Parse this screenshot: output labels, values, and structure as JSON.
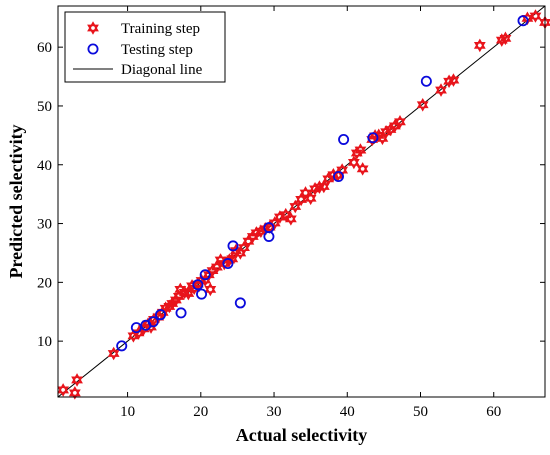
{
  "chart_data": {
    "type": "scatter",
    "title": "",
    "xlabel": "Actual selectivity",
    "ylabel": "Predicted selectivity",
    "xlim": [
      0.5,
      67
    ],
    "ylim": [
      0.5,
      67
    ],
    "xticks": [
      10,
      20,
      30,
      40,
      50,
      60
    ],
    "yticks": [
      10,
      20,
      30,
      40,
      50,
      60
    ],
    "grid": false,
    "legend_position": "top-left",
    "colors": {
      "training": "#e8141b",
      "testing": "#0a0adc",
      "diagonal": "#000000"
    },
    "series": [
      {
        "name": "Training step",
        "marker": "hexagram",
        "points": [
          [
            1.2,
            1.7
          ],
          [
            2.8,
            1.2
          ],
          [
            3.1,
            3.4
          ],
          [
            8.1,
            7.9
          ],
          [
            10.8,
            10.9
          ],
          [
            11.5,
            11.4
          ],
          [
            12.2,
            12.1
          ],
          [
            12.8,
            12.9
          ],
          [
            13.2,
            12.4
          ],
          [
            13.6,
            13.7
          ],
          [
            14.2,
            14.1
          ],
          [
            14.8,
            14.9
          ],
          [
            15.2,
            15.6
          ],
          [
            15.7,
            15.9
          ],
          [
            16.1,
            16.4
          ],
          [
            16.6,
            17.0
          ],
          [
            17.0,
            17.6
          ],
          [
            17.2,
            18.8
          ],
          [
            17.8,
            18.3
          ],
          [
            18.3,
            18.1
          ],
          [
            18.8,
            19.4
          ],
          [
            19.1,
            19.0
          ],
          [
            19.6,
            19.7
          ],
          [
            20.1,
            20.3
          ],
          [
            20.6,
            20.4
          ],
          [
            21.1,
            21.3
          ],
          [
            21.3,
            18.8
          ],
          [
            21.6,
            22.0
          ],
          [
            22.2,
            22.6
          ],
          [
            22.7,
            23.8
          ],
          [
            23.2,
            23.2
          ],
          [
            23.9,
            23.8
          ],
          [
            24.3,
            24.0
          ],
          [
            24.8,
            25.4
          ],
          [
            25.4,
            25.0
          ],
          [
            25.9,
            25.9
          ],
          [
            26.5,
            27.0
          ],
          [
            27.1,
            27.8
          ],
          [
            27.6,
            28.4
          ],
          [
            28.2,
            28.7
          ],
          [
            28.8,
            29.1
          ],
          [
            29.4,
            29.4
          ],
          [
            30.1,
            30.1
          ],
          [
            30.8,
            31.1
          ],
          [
            31.6,
            31.5
          ],
          [
            32.3,
            30.8
          ],
          [
            32.9,
            32.9
          ],
          [
            33.7,
            34.1
          ],
          [
            34.3,
            35.2
          ],
          [
            35.0,
            34.3
          ],
          [
            35.6,
            35.9
          ],
          [
            36.2,
            36.2
          ],
          [
            36.8,
            36.3
          ],
          [
            37.4,
            37.6
          ],
          [
            38.1,
            38.3
          ],
          [
            38.7,
            38.2
          ],
          [
            39.3,
            39.1
          ],
          [
            40.9,
            40.4
          ],
          [
            41.3,
            42.0
          ],
          [
            41.8,
            42.5
          ],
          [
            42.1,
            39.3
          ],
          [
            43.4,
            44.3
          ],
          [
            43.8,
            44.9
          ],
          [
            44.3,
            45.0
          ],
          [
            44.8,
            44.5
          ],
          [
            45.3,
            45.6
          ],
          [
            45.9,
            46.0
          ],
          [
            46.5,
            46.6
          ],
          [
            47.2,
            47.3
          ],
          [
            50.3,
            50.2
          ],
          [
            52.8,
            52.7
          ],
          [
            53.9,
            54.2
          ],
          [
            54.5,
            54.4
          ],
          [
            58.1,
            60.3
          ],
          [
            61.1,
            61.2
          ],
          [
            61.6,
            61.5
          ],
          [
            64.6,
            64.9
          ],
          [
            65.7,
            65.3
          ],
          [
            67.0,
            64.2
          ]
        ]
      },
      {
        "name": "Testing step",
        "marker": "circle",
        "points": [
          [
            9.2,
            9.2
          ],
          [
            11.2,
            12.3
          ],
          [
            12.5,
            12.7
          ],
          [
            13.5,
            13.3
          ],
          [
            14.5,
            14.5
          ],
          [
            17.3,
            14.8
          ],
          [
            19.6,
            19.6
          ],
          [
            20.1,
            18.0
          ],
          [
            20.6,
            21.3
          ],
          [
            23.7,
            23.2
          ],
          [
            24.4,
            26.2
          ],
          [
            25.4,
            16.5
          ],
          [
            29.3,
            29.3
          ],
          [
            29.3,
            27.8
          ],
          [
            38.8,
            38.0
          ],
          [
            39.5,
            44.3
          ],
          [
            43.5,
            44.6
          ],
          [
            50.8,
            54.2
          ],
          [
            64.0,
            64.5
          ]
        ]
      },
      {
        "name": "Diagonal line",
        "marker": "line",
        "points": [
          [
            0.5,
            0.5
          ],
          [
            67,
            67
          ]
        ]
      }
    ]
  }
}
